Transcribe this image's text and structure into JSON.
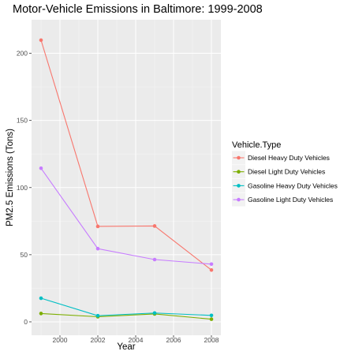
{
  "chart_data": {
    "type": "line",
    "title": "Motor-Vehicle Emissions in Baltimore: 1999-2008",
    "xlabel": "Year",
    "ylabel": "PM2.5 Emissions (Tons)",
    "x": [
      1999,
      2002,
      2005,
      2008
    ],
    "xlim": [
      1998.5,
      2008.5
    ],
    "ylim": [
      -10,
      225
    ],
    "xticks": [
      2000,
      2002,
      2004,
      2006,
      2008
    ],
    "yticks": [
      0,
      50,
      100,
      150,
      200
    ],
    "grid": true,
    "legend_title": "Vehicle.Type",
    "legend_position": "right",
    "series": [
      {
        "name": "Diesel Heavy Duty Vehicles",
        "color": "#F8766D",
        "values": [
          209.8,
          71.1,
          71.4,
          38.6
        ]
      },
      {
        "name": "Diesel Light Duty Vehicles",
        "color": "#7CAE00",
        "values": [
          6.2,
          3.8,
          5.9,
          2.0
        ]
      },
      {
        "name": "Gasoline Heavy Duty Vehicles",
        "color": "#00BFC4",
        "values": [
          17.6,
          4.6,
          6.6,
          4.8
        ]
      },
      {
        "name": "Gasoline Light Duty Vehicles",
        "color": "#C77CFF",
        "values": [
          114.4,
          54.5,
          46.4,
          43.0
        ]
      }
    ]
  }
}
